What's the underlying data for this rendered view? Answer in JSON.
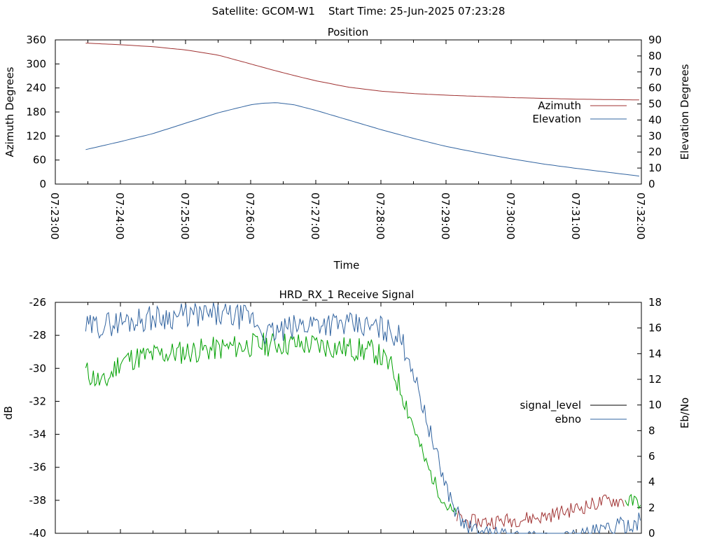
{
  "header": {
    "title": "Satellite: GCOM-W1    Start Time: 25-Jun-2025 07:23:28"
  },
  "chart_data": [
    {
      "type": "line",
      "title": "Position",
      "xlabel": "Time",
      "ylabel": "Azimuth Degrees",
      "y2label": "Elevation Degrees",
      "ylim": [
        0,
        360
      ],
      "y2lim": [
        0,
        90
      ],
      "xlim": [
        "07:23:00",
        "07:32:00"
      ],
      "xticks": [
        "07:23:00",
        "07:24:00",
        "07:25:00",
        "07:26:00",
        "07:27:00",
        "07:28:00",
        "07:29:00",
        "07:30:00",
        "07:31:00",
        "07:32:00"
      ],
      "yticks": [
        "0",
        "60",
        "120",
        "180",
        "240",
        "300",
        "360"
      ],
      "y2ticks": [
        "0",
        "10",
        "20",
        "30",
        "40",
        "50",
        "60",
        "70",
        "80",
        "90"
      ],
      "legend_position": "right",
      "grid": false,
      "series": [
        {
          "name": "Azimuth",
          "axis": "left",
          "color": "#a03232",
          "x": [
            "07:23:28",
            "07:24:00",
            "07:24:30",
            "07:25:00",
            "07:25:30",
            "07:26:00",
            "07:26:20",
            "07:26:40",
            "07:27:00",
            "07:27:30",
            "07:28:00",
            "07:28:30",
            "07:29:00",
            "07:29:30",
            "07:30:00",
            "07:30:30",
            "07:31:00",
            "07:31:30",
            "07:32:00"
          ],
          "values": [
            352,
            348,
            343,
            335,
            322,
            300,
            285,
            271,
            258,
            242,
            232,
            226,
            222,
            219,
            216,
            214,
            212,
            211,
            210
          ]
        },
        {
          "name": "Elevation",
          "axis": "right",
          "color": "#3264a0",
          "x": [
            "07:23:28",
            "07:24:00",
            "07:24:30",
            "07:25:00",
            "07:25:30",
            "07:26:00",
            "07:26:12",
            "07:26:24",
            "07:26:40",
            "07:27:00",
            "07:27:30",
            "07:28:00",
            "07:28:30",
            "07:29:00",
            "07:29:30",
            "07:30:00",
            "07:30:30",
            "07:31:00",
            "07:31:30",
            "07:31:58"
          ],
          "values": [
            21.5,
            26.5,
            31.5,
            38,
            44.5,
            49.5,
            50.5,
            50.8,
            49.5,
            46,
            40,
            34,
            28.5,
            23.5,
            19.5,
            15.8,
            12.5,
            9.8,
            7.3,
            5
          ]
        }
      ]
    },
    {
      "type": "line",
      "title": "HRD_RX_1 Receive Signal",
      "ylabel": "dB",
      "y2label": "Eb/No",
      "ylim": [
        -40,
        -26
      ],
      "y2lim": [
        0,
        18
      ],
      "xlim": [
        "07:23:00",
        "07:32:00"
      ],
      "yticks": [
        "-40",
        "-38",
        "-36",
        "-34",
        "-32",
        "-30",
        "-28",
        "-26"
      ],
      "y2ticks": [
        "0",
        "2",
        "4",
        "6",
        "8",
        "10",
        "12",
        "14",
        "16",
        "18"
      ],
      "legend_position": "right",
      "grid": false,
      "series": [
        {
          "name": "signal_level",
          "axis": "left",
          "color": "#000000",
          "x": [
            "07:23:28",
            "07:23:45",
            "07:24:00",
            "07:24:30",
            "07:25:00",
            "07:25:30",
            "07:26:00",
            "07:26:30",
            "07:27:00",
            "07:27:30",
            "07:27:55",
            "07:28:10",
            "07:28:20",
            "07:28:30",
            "07:28:40",
            "07:28:50",
            "07:29:00",
            "07:29:10",
            "07:29:20",
            "07:29:40",
            "07:30:00",
            "07:30:30",
            "07:31:00",
            "07:31:30",
            "07:32:00"
          ],
          "values": [
            -30.2,
            -31,
            -29.5,
            -29.2,
            -29,
            -28.8,
            -28.6,
            -28.5,
            -28.6,
            -28.8,
            -29,
            -30,
            -31.5,
            -33.5,
            -35.5,
            -37,
            -38.3,
            -39,
            -39.3,
            -39.3,
            -39.2,
            -39,
            -38.5,
            -38,
            -38.1
          ],
          "colored_segments": [
            {
              "color": "#00a000",
              "x_range": [
                "07:23:28",
                "07:29:10"
              ]
            },
            {
              "color": "#a03232",
              "x_range": [
                "07:29:10",
                "07:31:45"
              ]
            },
            {
              "color": "#00a000",
              "x_range": [
                "07:31:45",
                "07:32:00"
              ]
            }
          ]
        },
        {
          "name": "ebno",
          "axis": "right",
          "color": "#3264a0",
          "x": [
            "07:23:28",
            "07:24:00",
            "07:24:30",
            "07:25:00",
            "07:25:30",
            "07:26:00",
            "07:26:15",
            "07:26:30",
            "07:27:00",
            "07:27:30",
            "07:28:00",
            "07:28:15",
            "07:28:25",
            "07:28:35",
            "07:28:45",
            "07:28:55",
            "07:29:05",
            "07:29:15",
            "07:29:30",
            "07:30:00",
            "07:30:30",
            "07:31:00",
            "07:31:30",
            "07:32:00"
          ],
          "values": [
            16,
            16.5,
            16.8,
            17,
            17,
            16.8,
            15.5,
            15.8,
            16.5,
            16.2,
            16,
            15.5,
            14,
            11,
            8,
            5,
            2.5,
            0.8,
            0,
            -0.3,
            -0.5,
            -0.3,
            0.3,
            1
          ]
        }
      ]
    }
  ]
}
